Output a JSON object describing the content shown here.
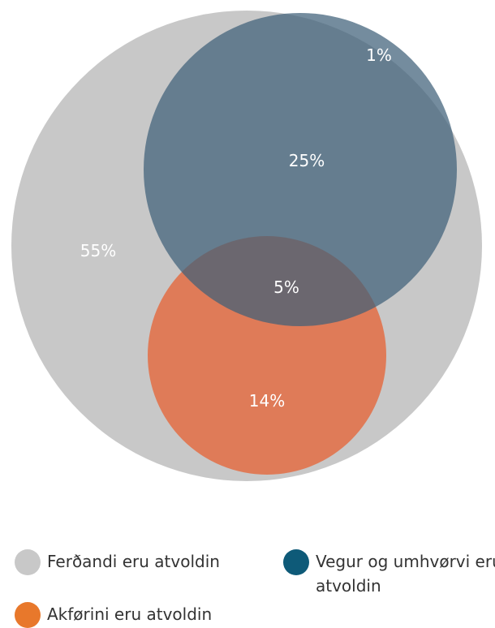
{
  "chart_data": {
    "type": "venn",
    "sets": [
      {
        "name": "Ferðandi eru atvoldin",
        "color": "#c8c8c8"
      },
      {
        "name": "Vegur og umhvørvi eru atvoldin",
        "color": "#6a808e"
      },
      {
        "name": "Akførini eru atvoldin",
        "color": "#df7b58"
      }
    ],
    "regions": [
      {
        "sets": [
          "Ferðandi eru atvoldin"
        ],
        "label": "55%",
        "value": 55
      },
      {
        "sets": [
          "Ferðandi eru atvoldin",
          "Vegur og umhvørvi eru atvoldin"
        ],
        "label": "25%",
        "value": 25
      },
      {
        "sets": [
          "Vegur og umhvørvi eru atvoldin"
        ],
        "label": "1%",
        "value": 1
      },
      {
        "sets": [
          "Ferðandi eru atvoldin",
          "Vegur og umhvørvi eru atvoldin",
          "Akførini eru atvoldin"
        ],
        "label": "5%",
        "value": 5
      },
      {
        "sets": [
          "Ferðandi eru atvoldin",
          "Akførini eru atvoldin"
        ],
        "label": "14%",
        "value": 14
      }
    ]
  },
  "legend": [
    {
      "label": "Ferðandi eru atvoldin",
      "color": "#c8c8c8"
    },
    {
      "label": "Vegur og umhvørvi eru atvoldin",
      "color": "#0e5a78"
    },
    {
      "label": "Akførini eru atvoldin",
      "color": "#e8782b"
    }
  ]
}
